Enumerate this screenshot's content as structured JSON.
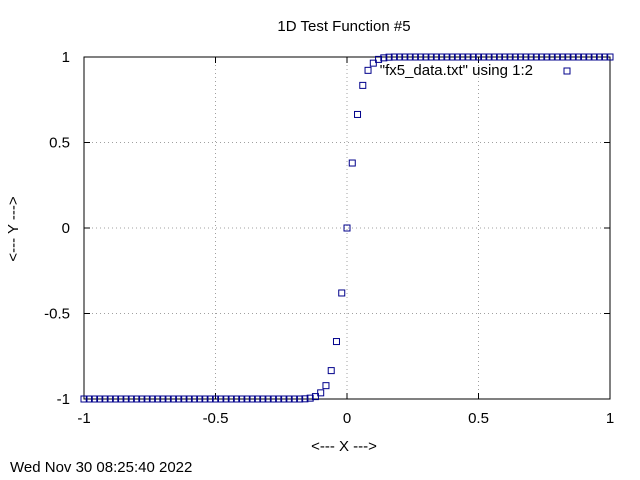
{
  "timestamp": "Wed Nov 30 08:25:40 2022",
  "chart_data": {
    "type": "scatter",
    "title": "1D Test Function #5",
    "xlabel": "<--- X --->",
    "ylabel": "<--- Y --->",
    "xlim": [
      -1,
      1
    ],
    "ylim": [
      -1,
      1
    ],
    "xticks": [
      -1,
      -0.5,
      0,
      0.5,
      1
    ],
    "xtick_labels": [
      "-1",
      "-0.5",
      "0",
      "0.5",
      "1"
    ],
    "yticks": [
      -1,
      -0.5,
      0,
      0.5,
      1
    ],
    "ytick_labels": [
      "-1",
      "-0.5",
      "0",
      "0.5",
      "1"
    ],
    "grid": true,
    "legend_position": "top-right",
    "marker_color": "#00008b",
    "series": [
      {
        "name": "\"fx5_data.txt\" using 1:2",
        "marker": "open-square",
        "x": [
          -1,
          -0.98,
          -0.96,
          -0.94,
          -0.92,
          -0.9,
          -0.88,
          -0.86,
          -0.84,
          -0.82,
          -0.8,
          -0.78,
          -0.76,
          -0.74,
          -0.72,
          -0.7,
          -0.68,
          -0.66,
          -0.64,
          -0.62,
          -0.6,
          -0.58,
          -0.56,
          -0.54,
          -0.52,
          -0.5,
          -0.48,
          -0.46,
          -0.44,
          -0.42,
          -0.4,
          -0.38,
          -0.36,
          -0.34,
          -0.32,
          -0.3,
          -0.28,
          -0.26,
          -0.24,
          -0.22,
          -0.2,
          -0.18,
          -0.16,
          -0.14,
          -0.12,
          -0.1,
          -0.08,
          -0.06,
          -0.04,
          -0.02,
          0,
          0.02,
          0.04,
          0.06,
          0.08,
          0.1,
          0.12,
          0.14,
          0.16,
          0.18,
          0.2,
          0.22,
          0.24,
          0.26,
          0.28,
          0.3,
          0.32,
          0.34,
          0.36,
          0.38,
          0.4,
          0.42,
          0.44,
          0.46,
          0.48,
          0.5,
          0.52,
          0.54,
          0.56,
          0.58,
          0.6,
          0.62,
          0.64,
          0.66,
          0.68,
          0.7,
          0.72,
          0.74,
          0.76,
          0.78,
          0.8,
          0.82,
          0.84,
          0.86,
          0.88,
          0.9,
          0.92,
          0.94,
          0.96,
          0.98,
          1
        ],
        "y": [
          -1,
          -1,
          -1,
          -1,
          -1,
          -1,
          -1,
          -1,
          -1,
          -1,
          -1,
          -1,
          -1,
          -1,
          -1,
          -1,
          -1,
          -1,
          -1,
          -1,
          -1,
          -1,
          -1,
          -1,
          -1,
          -1,
          -1,
          -1,
          -1,
          -1,
          -1,
          -1,
          -1,
          -1,
          -1,
          -1,
          -1,
          -1,
          -1,
          -1,
          -1,
          -1,
          -0.999,
          -0.995,
          -0.986,
          -0.964,
          -0.922,
          -0.834,
          -0.664,
          -0.38,
          0,
          0.38,
          0.664,
          0.834,
          0.922,
          0.964,
          0.986,
          0.995,
          0.999,
          1,
          1,
          1,
          1,
          1,
          1,
          1,
          1,
          1,
          1,
          1,
          1,
          1,
          1,
          1,
          1,
          1,
          1,
          1,
          1,
          1,
          1,
          1,
          1,
          1,
          1,
          1,
          1,
          1,
          1,
          1,
          1,
          1,
          1,
          1,
          1,
          1,
          1,
          1,
          1,
          1,
          1
        ]
      }
    ]
  }
}
